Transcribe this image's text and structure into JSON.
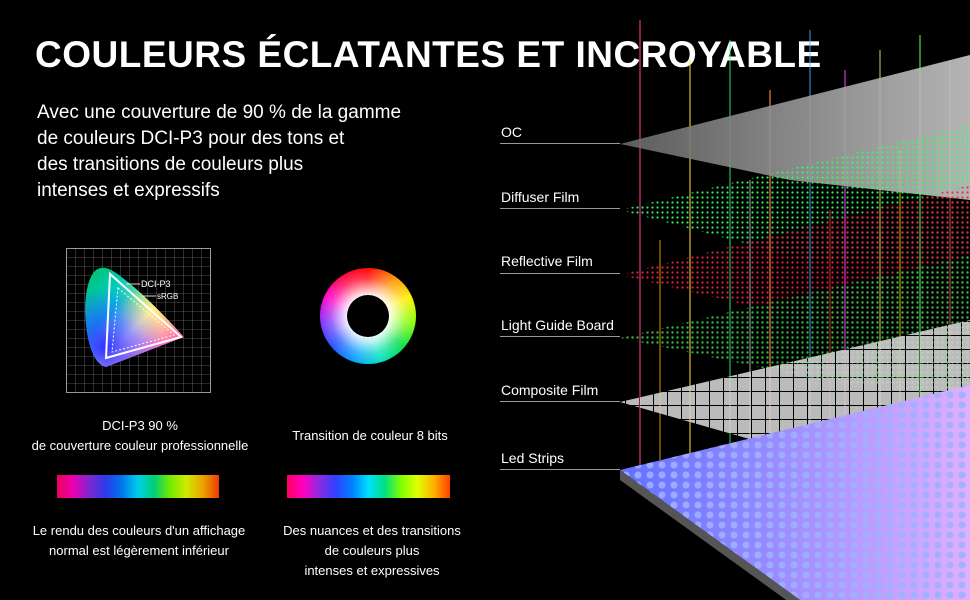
{
  "title": "COULEURS ÉCLATANTES ET INCROYABLE",
  "intro_lines": [
    "Avec une couverture de 90 % de la gamme",
    "de couleurs DCI-P3 pour des tons et",
    "des transitions de couleurs plus",
    "intenses et expressifs"
  ],
  "gamut": {
    "label_dci": "DCI-P3",
    "label_srgb": "sRGB"
  },
  "left_caption": [
    "DCI-P3 90 %",
    "de couverture couleur professionnelle"
  ],
  "mid_caption": "Transition de couleur 8 bits",
  "left_bottom": [
    "Le rendu des couleurs d'un affichage",
    "normal est légèrement inférieur"
  ],
  "mid_bottom": [
    "Des nuances et des transitions",
    "de couleurs plus",
    "intenses et expressives"
  ],
  "layers": [
    {
      "label": "OC",
      "color": "#9a9a9a"
    },
    {
      "label": "Diffuser Film",
      "color": "#20d040"
    },
    {
      "label": "Reflective Film",
      "color": "#e02040"
    },
    {
      "label": "Light Guide Board",
      "color": "#20b040"
    },
    {
      "label": "Composite Film",
      "color": "#d8d8d8"
    },
    {
      "label": "Led Strips",
      "color": "#8890ff"
    }
  ]
}
